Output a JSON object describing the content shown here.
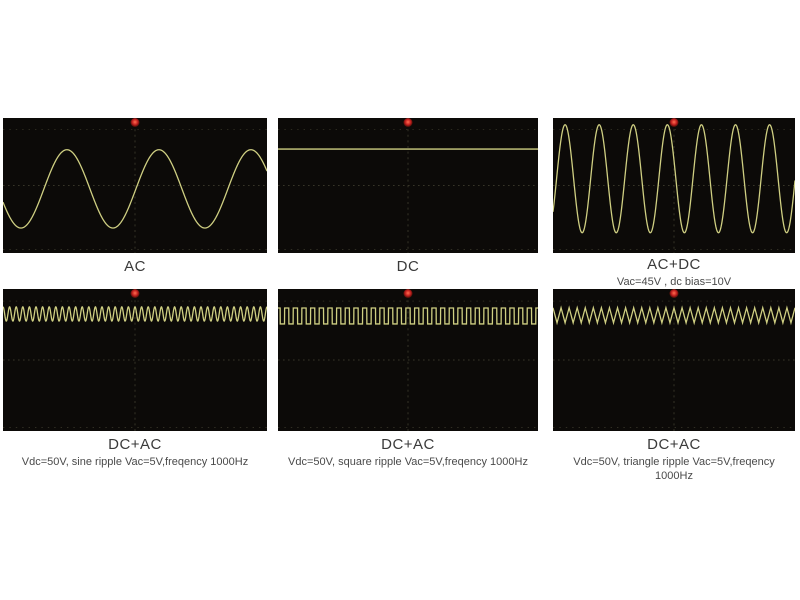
{
  "scope_style": {
    "screen_bg": "#0c0a08",
    "trace_color": "#cfcf82",
    "grid_color": "#3a382a",
    "trigger_color": "#c42020",
    "label_color": "#3a3a3a",
    "caption_color": "#4a4a4a"
  },
  "chart_data": [
    {
      "id": "ac",
      "type": "line",
      "signal": "sine",
      "title": "AC",
      "caption": "",
      "cycles": 2.87,
      "phase": 0.555,
      "y_center_frac": 0.525,
      "amplitude_frac": 0.29,
      "legend": "pure AC sine wave, ~3 cycles visible"
    },
    {
      "id": "dc",
      "type": "line",
      "signal": "dc",
      "title": "DC",
      "caption": "",
      "cycles": 0,
      "phase": 0,
      "y_center_frac": 0.23,
      "amplitude_frac": 0,
      "legend": "flat DC level near top of screen"
    },
    {
      "id": "ac-plus-dc",
      "type": "line",
      "signal": "sine",
      "title": "AC+DC",
      "caption": "Vac=45V , dc bias=10V",
      "cycles": 7.1,
      "phase": -0.105,
      "y_center_frac": 0.45,
      "amplitude_frac": 0.4,
      "legend": "large sine on dc bias, ~7 cycles visible"
    },
    {
      "id": "dc-plus-ac-sine",
      "type": "line",
      "signal": "sine",
      "title": "DC+AC",
      "caption": "Vdc=50V, sine ripple Vac=5V,freqency 1000Hz",
      "cycles": 40,
      "phase": 0.25,
      "y_center_frac": 0.176,
      "amplitude_frac": 0.05,
      "legend": "small sine ripple riding on dc level"
    },
    {
      "id": "dc-plus-ac-square",
      "type": "line",
      "signal": "square",
      "title": "DC+AC",
      "caption": "Vdc=50V, square ripple Vac=5V,freqency 1000Hz",
      "cycles": 30,
      "phase": 0.25,
      "y_center_frac": 0.19,
      "amplitude_frac": 0.056,
      "legend": "small square ripple riding on dc level"
    },
    {
      "id": "dc-plus-ac-triangle",
      "type": "line",
      "signal": "triangle",
      "title": "DC+AC",
      "caption": "Vdc=50V, triangle ripple Vac=5V,freqency 1000Hz",
      "cycles": 30,
      "phase": 0.25,
      "y_center_frac": 0.185,
      "amplitude_frac": 0.053,
      "legend": "small triangle ripple riding on dc level"
    }
  ]
}
